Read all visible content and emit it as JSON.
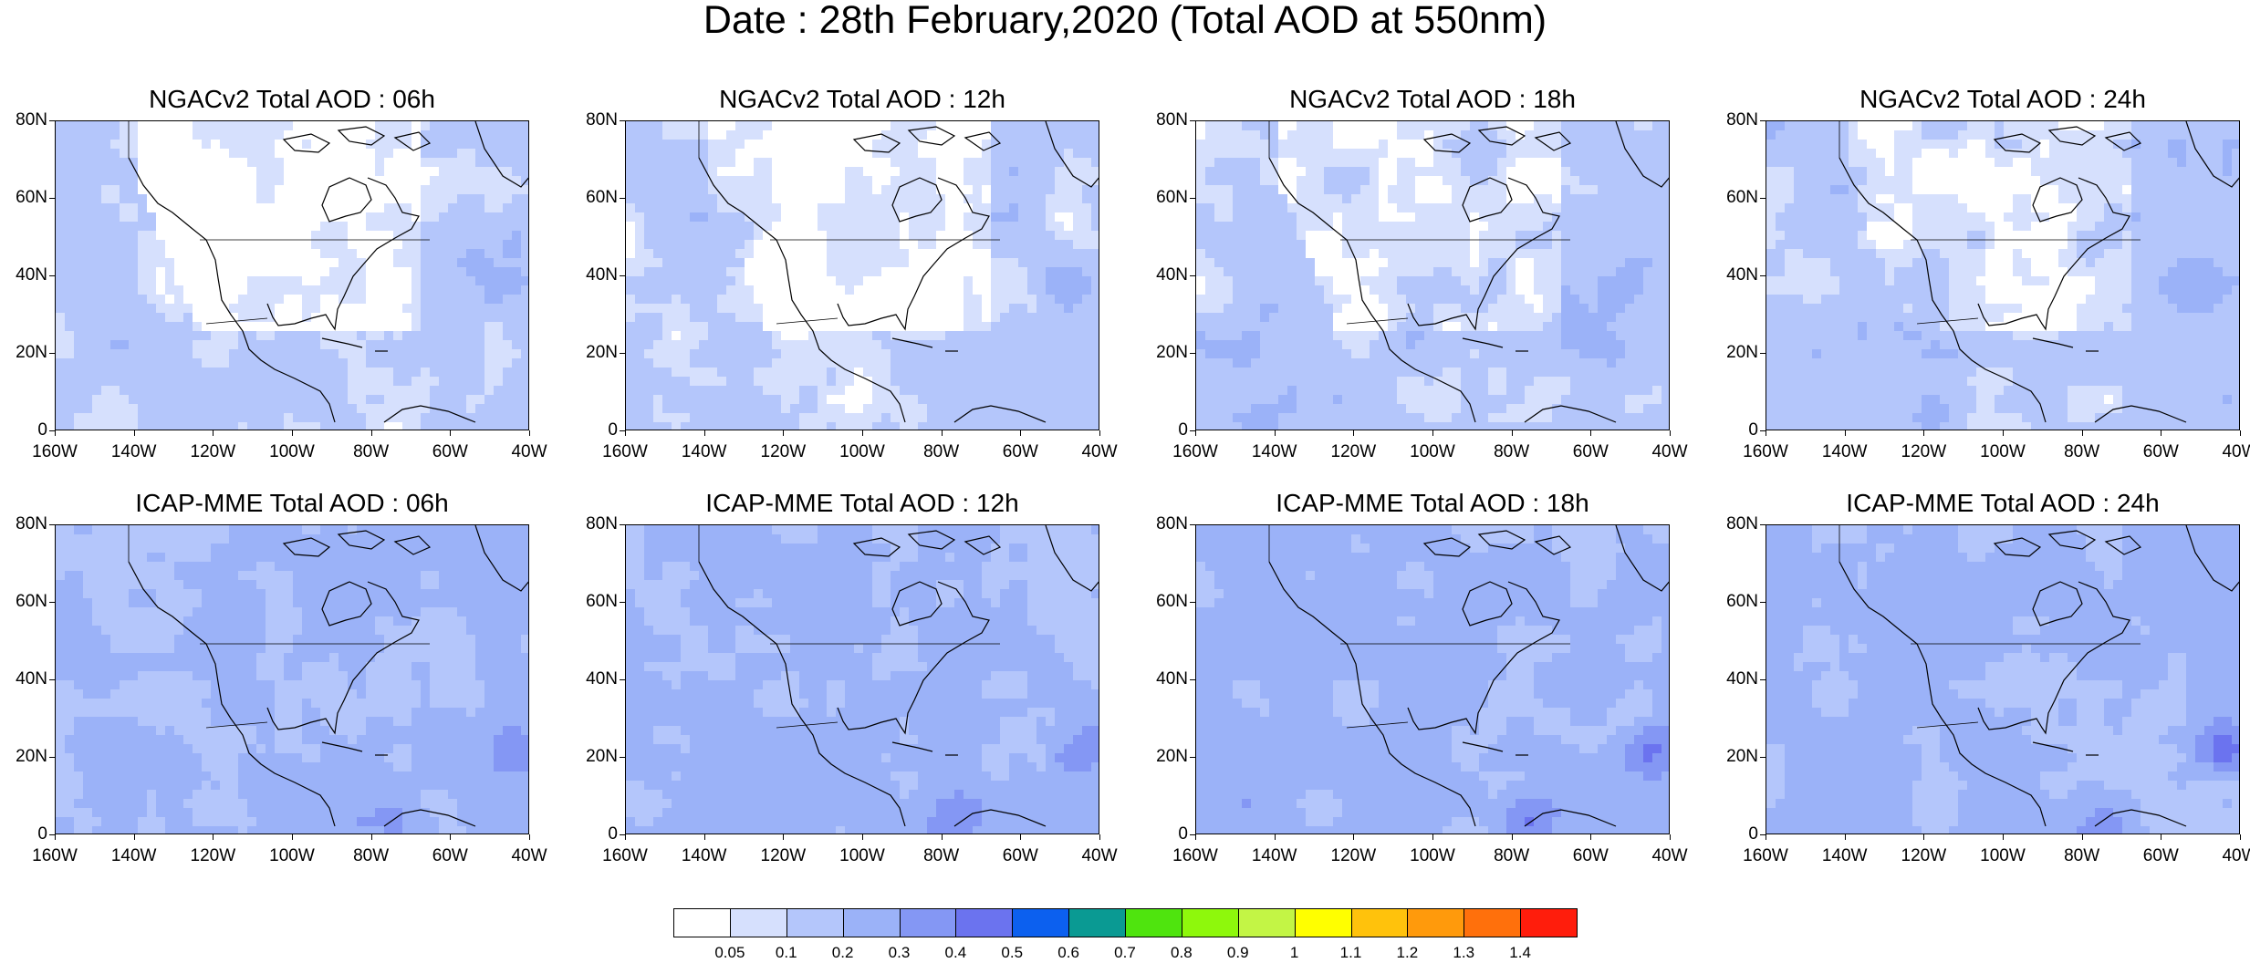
{
  "title": "Date : 28th February,2020 (Total AOD at 550nm)",
  "axes": {
    "y_ticks": [
      "80N",
      "60N",
      "40N",
      "20N",
      "0"
    ],
    "x_ticks": [
      "160W",
      "140W",
      "120W",
      "100W",
      "80W",
      "60W",
      "40W"
    ],
    "lon_range": [
      -160,
      -40
    ],
    "lat_range": [
      0,
      80
    ]
  },
  "panels": [
    {
      "title": "NGACv2 Total AOD : 06h",
      "model": "NGACv2",
      "level": 0.12
    },
    {
      "title": "NGACv2 Total AOD : 12h",
      "model": "NGACv2",
      "level": 0.12
    },
    {
      "title": "NGACv2 Total AOD : 18h",
      "model": "NGACv2",
      "level": 0.14
    },
    {
      "title": "NGACv2 Total AOD : 24h",
      "model": "NGACv2",
      "level": 0.14
    },
    {
      "title": "ICAP-MME Total AOD : 06h",
      "model": "ICAP-MME",
      "level": 0.22
    },
    {
      "title": "ICAP-MME Total AOD : 12h",
      "model": "ICAP-MME",
      "level": 0.22
    },
    {
      "title": "ICAP-MME Total AOD : 18h",
      "model": "ICAP-MME",
      "level": 0.22
    },
    {
      "title": "ICAP-MME Total AOD : 24h",
      "model": "ICAP-MME",
      "level": 0.22
    }
  ],
  "colorbar": {
    "labels": [
      "0.05",
      "0.1",
      "0.2",
      "0.3",
      "0.4",
      "0.5",
      "0.6",
      "0.7",
      "0.8",
      "0.9",
      "1",
      "1.1",
      "1.2",
      "1.3",
      "1.4"
    ],
    "colors": [
      "#ffffff",
      "#d6e0fd",
      "#b4c6fb",
      "#9bb2f8",
      "#8497f4",
      "#6b73ef",
      "#0c60ef",
      "#0a9a93",
      "#4fe40e",
      "#8ef80c",
      "#c3f545",
      "#ffff00",
      "#ffc20c",
      "#ff9a0c",
      "#ff700c",
      "#ff1d0c"
    ]
  }
}
